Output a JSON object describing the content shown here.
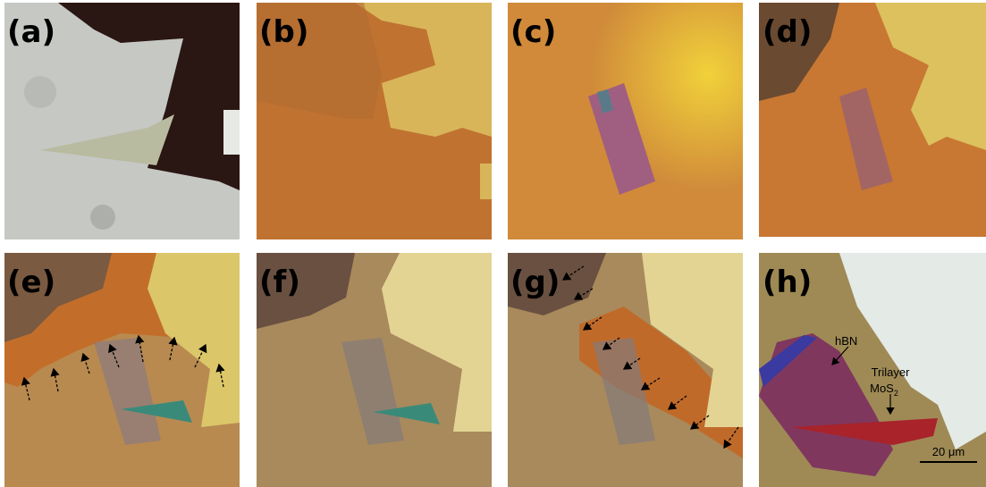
{
  "panels": [
    {
      "label": "(a)"
    },
    {
      "label": "(b)"
    },
    {
      "label": "(c)"
    },
    {
      "label": "(d)"
    },
    {
      "label": "(e)"
    },
    {
      "label": "(f)"
    },
    {
      "label": "(g)"
    },
    {
      "label": "(h)"
    }
  ],
  "annotations": {
    "hbn": "hBN",
    "trilayer": "Trilayer",
    "mos": "MoS",
    "mos_subscript": "2"
  },
  "scale_bar": "20 μm"
}
